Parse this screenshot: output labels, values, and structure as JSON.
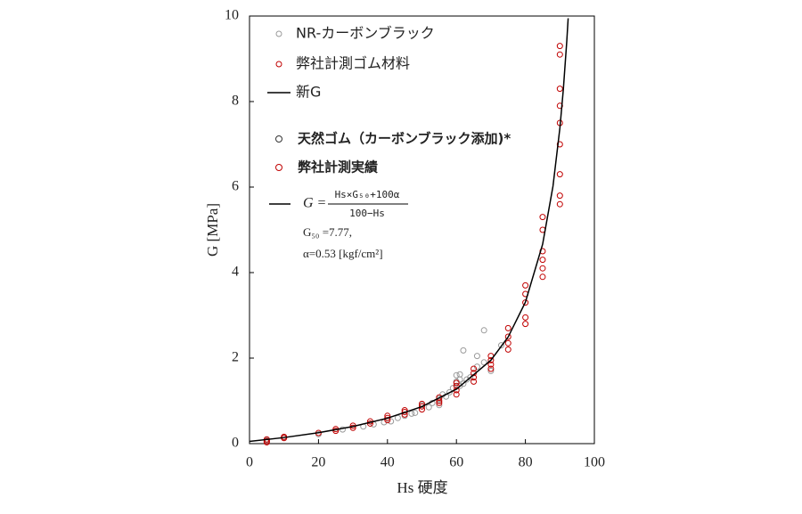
{
  "chart_data": {
    "type": "scatter",
    "xlabel": "Hs 硬度",
    "ylabel": "G [MPa]",
    "xlim": [
      0,
      100
    ],
    "ylim": [
      0,
      10
    ],
    "xticks": [
      0,
      20,
      40,
      60,
      80,
      100
    ],
    "yticks": [
      0,
      2,
      4,
      6,
      8,
      10
    ],
    "series": [
      {
        "name": "NR-カーボンブラック",
        "color": "#9a9a9a",
        "mode": "markers",
        "x": [
          5,
          5,
          10,
          20,
          27,
          33,
          36,
          39,
          41,
          43,
          45,
          47,
          48,
          50,
          52,
          53,
          55,
          55,
          56,
          57,
          58,
          59,
          60,
          60,
          61,
          61,
          61,
          62,
          62,
          63,
          64,
          66,
          66,
          68,
          68,
          70,
          73
        ],
        "values": [
          0.05,
          0.08,
          0.15,
          0.22,
          0.33,
          0.4,
          0.45,
          0.5,
          0.52,
          0.6,
          0.65,
          0.7,
          0.72,
          0.9,
          0.85,
          0.95,
          0.9,
          1.05,
          1.15,
          1.1,
          1.2,
          1.3,
          1.45,
          1.6,
          1.35,
          1.5,
          1.62,
          1.4,
          2.18,
          1.5,
          1.55,
          1.8,
          2.05,
          1.9,
          2.65,
          1.7,
          2.3
        ]
      },
      {
        "name": "弊社計測ゴム材料",
        "color": "#c00000",
        "mode": "markers",
        "x": [
          5,
          5,
          5,
          10,
          10,
          20,
          25,
          25,
          30,
          30,
          35,
          35,
          40,
          40,
          40,
          45,
          45,
          45,
          50,
          50,
          50,
          55,
          55,
          55,
          60,
          60,
          60,
          60,
          65,
          65,
          65,
          65,
          70,
          70,
          70,
          70,
          75,
          75,
          75,
          75,
          80,
          80,
          80,
          80,
          80,
          85,
          85,
          85,
          85,
          85,
          85,
          90,
          90,
          90,
          90,
          90,
          90,
          90,
          90,
          90
        ],
        "values": [
          0.03,
          0.06,
          0.1,
          0.13,
          0.16,
          0.25,
          0.3,
          0.34,
          0.37,
          0.42,
          0.47,
          0.52,
          0.55,
          0.6,
          0.65,
          0.68,
          0.74,
          0.78,
          0.8,
          0.87,
          0.93,
          0.95,
          1.0,
          1.08,
          1.15,
          1.25,
          1.35,
          1.42,
          1.45,
          1.55,
          1.65,
          1.75,
          1.75,
          1.85,
          1.95,
          2.05,
          2.2,
          2.35,
          2.5,
          2.7,
          2.8,
          2.95,
          3.3,
          3.5,
          3.7,
          3.9,
          4.1,
          4.3,
          4.5,
          5.0,
          5.3,
          5.6,
          5.8,
          6.3,
          7.0,
          7.5,
          7.9,
          8.3,
          9.1,
          9.3
        ]
      },
      {
        "name": "新G",
        "color": "#000000",
        "mode": "line",
        "x": [
          0,
          10,
          20,
          30,
          40,
          50,
          60,
          70,
          75,
          80,
          85,
          88,
          90,
          91,
          92,
          92.4
        ],
        "values": [
          0.052,
          0.142,
          0.255,
          0.401,
          0.595,
          0.866,
          1.273,
          1.951,
          2.494,
          3.308,
          4.665,
          6.021,
          7.378,
          8.282,
          9.413,
          9.948
        ]
      }
    ],
    "legend_extra": [
      {
        "text": "天然ゴム（カーボンブラック添加)*",
        "color": "#333333"
      },
      {
        "text": "弊社計測実績",
        "color": "#c00000"
      }
    ],
    "formula": {
      "lhs": "G =",
      "numerator": "Hs×G₅₀+100α",
      "denominator": "100−Hs",
      "color": "#000000"
    },
    "notes": [
      "G₅₀ =7.77,",
      "α=0.53 [kgf/cm²]"
    ]
  }
}
